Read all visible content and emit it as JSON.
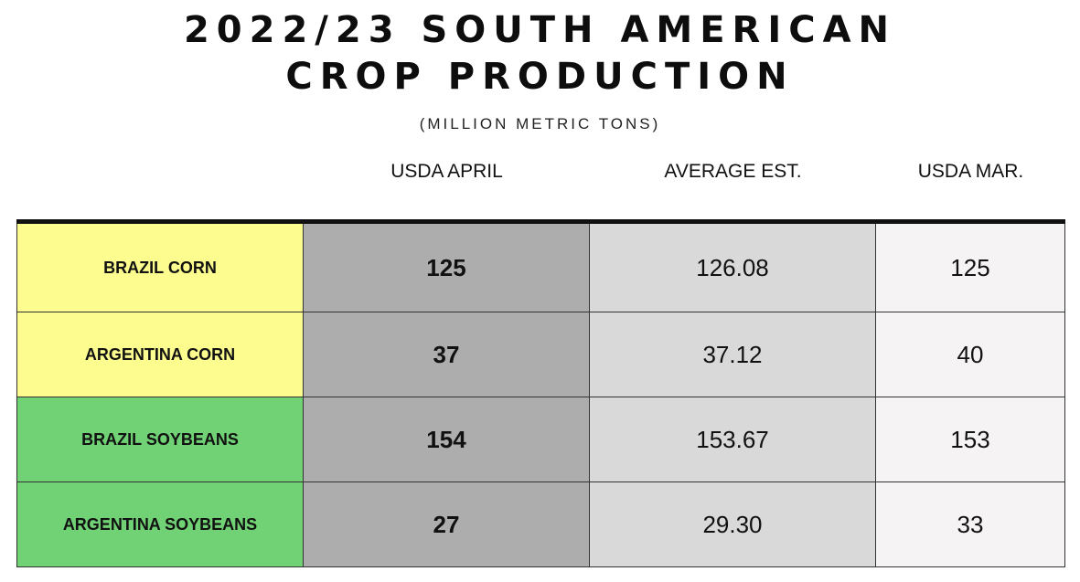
{
  "title_line1": "2022/23 SOUTH AMERICAN",
  "title_line2": "CROP PRODUCTION",
  "subtitle": "(MILLION METRIC TONS)",
  "chart_data": {
    "type": "table",
    "title": "2022/23 SOUTH AMERICAN CROP PRODUCTION",
    "units": "(MILLION METRIC TONS)",
    "columns": [
      "USDA APRIL",
      "AVERAGE EST.",
      "USDA MAR."
    ],
    "rows": [
      {
        "label": "BRAZIL CORN",
        "usda_april": "125",
        "average_est": "126.08",
        "usda_mar": "125",
        "color": "#fdfc8e"
      },
      {
        "label": "ARGENTINA CORN",
        "usda_april": "37",
        "average_est": "37.12",
        "usda_mar": "40",
        "color": "#fdfc8e"
      },
      {
        "label": "BRAZIL SOYBEANS",
        "usda_april": "154",
        "average_est": "153.67",
        "usda_mar": "153",
        "color": "#70d175"
      },
      {
        "label": "ARGENTINA SOYBEANS",
        "usda_april": "27",
        "average_est": "29.30",
        "usda_mar": "33",
        "color": "#70d175"
      }
    ]
  }
}
